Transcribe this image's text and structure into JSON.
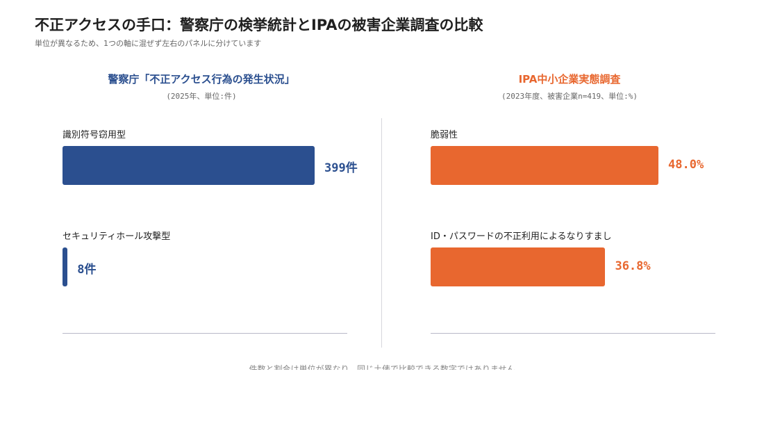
{
  "title": "不正アクセスの手口：警察庁の検挙統計とIPAの被害企業調査の比較",
  "subtitle": "単位が異なるため、1つの軸に混ぜず左右のパネルに分けています",
  "footnote": "件数と割合は単位が異なり、同じ土俵で比較できる数字ではありません",
  "colors": {
    "left": "#2b4f8f",
    "right": "#e8672f"
  },
  "chart_data": [
    {
      "type": "bar",
      "orientation": "horizontal",
      "title": "警察庁「不正アクセス行為の発生状況」",
      "subtitle": "(2025年、単位:件)",
      "categories": [
        "識別符号窃用型",
        "セキュリティホール攻撃型"
      ],
      "values": [
        399,
        8
      ],
      "value_labels": [
        "399件",
        "8件"
      ],
      "xlim": [
        0,
        399
      ]
    },
    {
      "type": "bar",
      "orientation": "horizontal",
      "title": "IPA中小企業実態調査",
      "subtitle": "(2023年度、被害企業n=419、単位:%)",
      "categories": [
        "脆弱性",
        "ID・パスワードの不正利用によるなりすまし"
      ],
      "values": [
        48.0,
        36.8
      ],
      "value_labels": [
        "48.0%",
        "36.8%"
      ],
      "xlim": [
        0,
        48.0
      ]
    }
  ]
}
